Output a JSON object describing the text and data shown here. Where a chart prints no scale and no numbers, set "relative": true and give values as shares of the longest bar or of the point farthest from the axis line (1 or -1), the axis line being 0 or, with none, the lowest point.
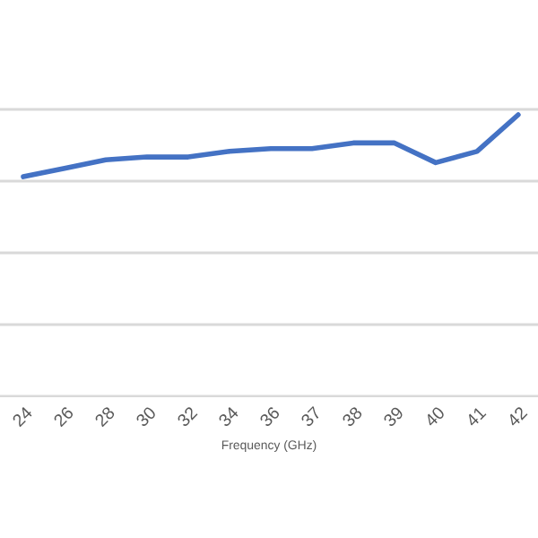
{
  "chart_data": {
    "type": "line",
    "relative": true,
    "xlabel": "Frequency (GHz)",
    "categories": [
      "24",
      "26",
      "28",
      "30",
      "32",
      "34",
      "36",
      "37",
      "38",
      "39",
      "40",
      "41",
      "42"
    ],
    "series": [
      {
        "color": "#4472c4",
        "values": [
          0.78,
          0.81,
          0.84,
          0.85,
          0.85,
          0.87,
          0.88,
          0.88,
          0.9,
          0.9,
          0.83,
          0.87,
          1.0
        ]
      }
    ],
    "grid": "y",
    "marker": "none",
    "line_style": "solid"
  }
}
